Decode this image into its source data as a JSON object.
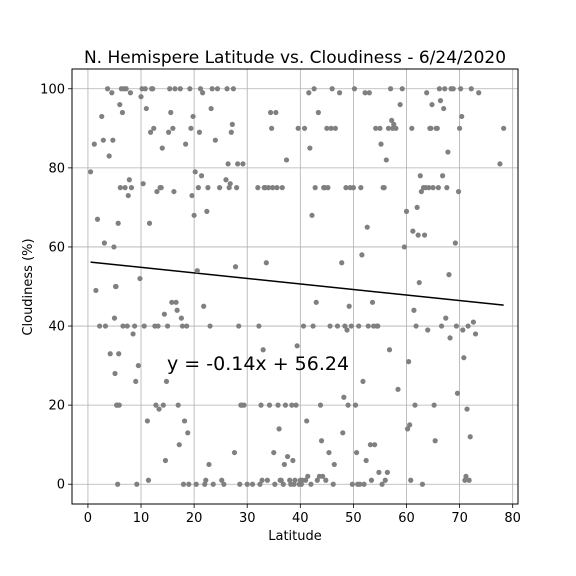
{
  "chart_data": {
    "type": "scatter",
    "title": "N. Hemispere Latitude vs. Cloudiness - 6/24/2020",
    "xlabel": "Latitude",
    "ylabel": "Cloudiness (%)",
    "xlim": [
      -3,
      81
    ],
    "ylim": [
      -5,
      105
    ],
    "xticks": [
      0,
      10,
      20,
      30,
      40,
      50,
      60,
      70,
      80
    ],
    "yticks": [
      0,
      20,
      40,
      60,
      80,
      100
    ],
    "grid": true,
    "point_color": "#808080",
    "line_color": "#000000",
    "regression": {
      "slope": -0.14,
      "intercept": 56.24,
      "x_start": 0.5,
      "x_end": 78.3
    },
    "annotation": "y = -0.14x + 56.24",
    "points": [
      [
        0.5,
        79
      ],
      [
        1.2,
        86
      ],
      [
        1.5,
        49
      ],
      [
        1.8,
        67
      ],
      [
        2.2,
        40
      ],
      [
        2.6,
        93
      ],
      [
        2.9,
        87
      ],
      [
        3.1,
        61
      ],
      [
        3.3,
        40
      ],
      [
        3.7,
        100
      ],
      [
        4.0,
        83
      ],
      [
        4.2,
        33
      ],
      [
        4.5,
        99
      ],
      [
        4.7,
        87
      ],
      [
        4.9,
        60
      ],
      [
        5.0,
        42
      ],
      [
        5.1,
        28
      ],
      [
        5.2,
        50
      ],
      [
        5.3,
        50
      ],
      [
        5.4,
        20
      ],
      [
        5.5,
        20
      ],
      [
        5.6,
        0
      ],
      [
        5.7,
        66
      ],
      [
        5.8,
        33
      ],
      [
        5.9,
        20
      ],
      [
        6.0,
        96
      ],
      [
        6.1,
        75
      ],
      [
        6.3,
        100
      ],
      [
        6.5,
        94
      ],
      [
        6.6,
        40
      ],
      [
        6.8,
        100
      ],
      [
        7.0,
        75
      ],
      [
        7.2,
        100
      ],
      [
        7.4,
        40
      ],
      [
        7.6,
        73
      ],
      [
        7.8,
        77
      ],
      [
        8.0,
        99
      ],
      [
        8.2,
        75
      ],
      [
        8.5,
        38
      ],
      [
        8.8,
        40
      ],
      [
        9.0,
        26
      ],
      [
        9.2,
        0
      ],
      [
        9.5,
        30
      ],
      [
        9.8,
        52
      ],
      [
        10.0,
        98
      ],
      [
        10.2,
        100
      ],
      [
        10.4,
        76
      ],
      [
        10.6,
        40
      ],
      [
        10.8,
        100
      ],
      [
        11.0,
        95
      ],
      [
        11.2,
        16
      ],
      [
        11.4,
        1
      ],
      [
        11.6,
        66
      ],
      [
        11.8,
        89
      ],
      [
        12.0,
        100
      ],
      [
        12.2,
        100
      ],
      [
        12.4,
        90
      ],
      [
        12.6,
        40
      ],
      [
        12.8,
        20
      ],
      [
        13.0,
        74
      ],
      [
        13.2,
        40
      ],
      [
        13.4,
        19
      ],
      [
        13.6,
        75
      ],
      [
        13.8,
        75
      ],
      [
        14.0,
        85
      ],
      [
        14.2,
        20
      ],
      [
        14.4,
        43
      ],
      [
        14.6,
        6
      ],
      [
        14.8,
        26
      ],
      [
        15.0,
        40
      ],
      [
        15.2,
        89
      ],
      [
        15.4,
        100
      ],
      [
        15.6,
        94
      ],
      [
        15.8,
        46
      ],
      [
        16.0,
        90
      ],
      [
        16.2,
        74
      ],
      [
        16.4,
        100
      ],
      [
        16.6,
        46
      ],
      [
        16.8,
        44
      ],
      [
        17.0,
        20
      ],
      [
        17.2,
        10
      ],
      [
        17.4,
        100
      ],
      [
        17.6,
        42
      ],
      [
        17.8,
        40
      ],
      [
        18.0,
        0
      ],
      [
        18.2,
        16
      ],
      [
        18.4,
        86
      ],
      [
        18.6,
        40
      ],
      [
        18.8,
        13
      ],
      [
        19.0,
        0
      ],
      [
        19.2,
        100
      ],
      [
        19.4,
        90
      ],
      [
        19.6,
        73
      ],
      [
        19.8,
        93
      ],
      [
        20.0,
        68
      ],
      [
        20.2,
        79
      ],
      [
        20.4,
        0
      ],
      [
        20.6,
        54
      ],
      [
        20.8,
        75
      ],
      [
        21.0,
        89
      ],
      [
        21.2,
        100
      ],
      [
        21.4,
        78
      ],
      [
        21.6,
        99
      ],
      [
        21.8,
        45
      ],
      [
        22.0,
        0
      ],
      [
        22.2,
        1
      ],
      [
        22.4,
        69
      ],
      [
        22.6,
        75
      ],
      [
        22.8,
        5
      ],
      [
        23.0,
        40
      ],
      [
        23.2,
        95
      ],
      [
        23.4,
        100
      ],
      [
        23.6,
        0
      ],
      [
        24.0,
        87
      ],
      [
        24.4,
        100
      ],
      [
        24.8,
        75
      ],
      [
        25.2,
        1
      ],
      [
        25.6,
        0
      ],
      [
        26.0,
        77
      ],
      [
        26.2,
        100
      ],
      [
        26.4,
        81
      ],
      [
        26.6,
        75
      ],
      [
        26.8,
        76
      ],
      [
        27.0,
        89
      ],
      [
        27.2,
        91
      ],
      [
        27.4,
        100
      ],
      [
        27.6,
        8
      ],
      [
        27.8,
        55
      ],
      [
        28.0,
        75
      ],
      [
        28.2,
        81
      ],
      [
        28.4,
        40
      ],
      [
        28.6,
        0
      ],
      [
        28.8,
        20
      ],
      [
        29.0,
        20
      ],
      [
        29.2,
        81
      ],
      [
        29.4,
        20
      ],
      [
        30.0,
        0
      ],
      [
        31.0,
        0
      ],
      [
        32.0,
        75
      ],
      [
        32.2,
        40
      ],
      [
        32.4,
        0
      ],
      [
        32.6,
        20
      ],
      [
        32.8,
        1
      ],
      [
        33.0,
        34
      ],
      [
        33.2,
        75
      ],
      [
        33.4,
        75
      ],
      [
        33.6,
        56
      ],
      [
        33.8,
        1
      ],
      [
        34.0,
        75
      ],
      [
        34.2,
        20
      ],
      [
        34.4,
        94
      ],
      [
        34.6,
        90
      ],
      [
        34.8,
        75
      ],
      [
        35.0,
        8
      ],
      [
        35.2,
        0
      ],
      [
        35.4,
        94
      ],
      [
        35.6,
        75
      ],
      [
        35.8,
        20
      ],
      [
        36.0,
        14
      ],
      [
        36.2,
        1
      ],
      [
        36.4,
        1
      ],
      [
        36.6,
        75
      ],
      [
        36.8,
        0
      ],
      [
        37.0,
        5
      ],
      [
        37.2,
        20
      ],
      [
        37.4,
        82
      ],
      [
        37.6,
        7
      ],
      [
        38.0,
        1
      ],
      [
        38.2,
        0
      ],
      [
        38.4,
        20
      ],
      [
        38.6,
        6
      ],
      [
        38.8,
        0
      ],
      [
        39.0,
        1
      ],
      [
        39.2,
        20
      ],
      [
        39.4,
        35
      ],
      [
        39.6,
        90
      ],
      [
        39.8,
        0
      ],
      [
        40.0,
        1
      ],
      [
        40.2,
        0
      ],
      [
        40.4,
        1
      ],
      [
        40.6,
        40
      ],
      [
        40.8,
        90
      ],
      [
        41.0,
        1
      ],
      [
        41.2,
        16
      ],
      [
        41.4,
        2
      ],
      [
        41.6,
        99
      ],
      [
        41.8,
        85
      ],
      [
        42.0,
        0
      ],
      [
        42.2,
        68
      ],
      [
        42.4,
        40
      ],
      [
        42.6,
        100
      ],
      [
        42.8,
        75
      ],
      [
        43.0,
        46
      ],
      [
        43.2,
        1
      ],
      [
        43.4,
        94
      ],
      [
        43.6,
        2
      ],
      [
        43.8,
        20
      ],
      [
        44.0,
        11
      ],
      [
        44.2,
        2
      ],
      [
        44.4,
        75
      ],
      [
        44.6,
        75
      ],
      [
        44.8,
        1
      ],
      [
        45.0,
        90
      ],
      [
        45.2,
        75
      ],
      [
        45.4,
        8
      ],
      [
        45.6,
        40
      ],
      [
        45.8,
        90
      ],
      [
        46.0,
        100
      ],
      [
        46.2,
        0
      ],
      [
        46.4,
        5
      ],
      [
        46.6,
        90
      ],
      [
        47.0,
        40
      ],
      [
        47.4,
        99
      ],
      [
        47.8,
        56
      ],
      [
        48.0,
        13
      ],
      [
        48.2,
        22
      ],
      [
        48.4,
        40
      ],
      [
        48.6,
        75
      ],
      [
        48.8,
        39
      ],
      [
        49.0,
        20
      ],
      [
        49.2,
        45
      ],
      [
        49.4,
        75
      ],
      [
        49.6,
        40
      ],
      [
        49.8,
        0
      ],
      [
        50.0,
        75
      ],
      [
        50.2,
        100
      ],
      [
        50.4,
        20
      ],
      [
        50.6,
        8
      ],
      [
        50.8,
        0
      ],
      [
        51.0,
        40
      ],
      [
        51.2,
        0
      ],
      [
        51.4,
        75
      ],
      [
        51.6,
        58
      ],
      [
        51.8,
        26
      ],
      [
        52.0,
        0
      ],
      [
        52.2,
        99
      ],
      [
        52.4,
        6
      ],
      [
        52.6,
        65
      ],
      [
        52.8,
        40
      ],
      [
        53.0,
        99
      ],
      [
        53.2,
        10
      ],
      [
        53.4,
        1
      ],
      [
        53.6,
        46
      ],
      [
        53.8,
        40
      ],
      [
        54.0,
        10
      ],
      [
        54.2,
        90
      ],
      [
        54.4,
        40
      ],
      [
        54.6,
        40
      ],
      [
        54.8,
        3
      ],
      [
        55.0,
        90
      ],
      [
        55.2,
        86
      ],
      [
        55.4,
        0
      ],
      [
        55.6,
        75
      ],
      [
        55.8,
        75
      ],
      [
        56.0,
        1
      ],
      [
        56.2,
        82
      ],
      [
        56.4,
        3
      ],
      [
        56.6,
        90
      ],
      [
        56.8,
        34
      ],
      [
        57.0,
        100
      ],
      [
        57.2,
        92
      ],
      [
        57.4,
        90
      ],
      [
        57.6,
        91
      ],
      [
        58.0,
        90
      ],
      [
        58.4,
        24
      ],
      [
        58.8,
        96
      ],
      [
        59.2,
        100
      ],
      [
        59.6,
        60
      ],
      [
        60.0,
        69
      ],
      [
        60.2,
        14
      ],
      [
        60.4,
        31
      ],
      [
        60.6,
        15
      ],
      [
        60.8,
        1
      ],
      [
        61.0,
        90
      ],
      [
        61.2,
        64
      ],
      [
        61.4,
        44
      ],
      [
        61.6,
        20
      ],
      [
        61.8,
        40
      ],
      [
        62.0,
        70
      ],
      [
        62.2,
        63
      ],
      [
        62.4,
        51
      ],
      [
        62.6,
        78
      ],
      [
        62.8,
        74
      ],
      [
        63.0,
        0
      ],
      [
        63.2,
        75
      ],
      [
        63.4,
        63
      ],
      [
        63.6,
        75
      ],
      [
        63.8,
        99
      ],
      [
        64.0,
        39
      ],
      [
        64.2,
        75
      ],
      [
        64.4,
        90
      ],
      [
        64.6,
        90
      ],
      [
        64.8,
        96
      ],
      [
        65.0,
        75
      ],
      [
        65.2,
        20
      ],
      [
        65.4,
        11
      ],
      [
        65.6,
        90
      ],
      [
        65.8,
        90
      ],
      [
        66.0,
        75
      ],
      [
        66.2,
        100
      ],
      [
        66.4,
        97
      ],
      [
        66.6,
        40
      ],
      [
        66.8,
        78
      ],
      [
        67.0,
        95
      ],
      [
        67.2,
        100
      ],
      [
        67.4,
        42
      ],
      [
        67.6,
        75
      ],
      [
        67.8,
        84
      ],
      [
        68.0,
        53
      ],
      [
        68.2,
        37
      ],
      [
        68.4,
        100
      ],
      [
        68.8,
        100
      ],
      [
        69.2,
        61
      ],
      [
        69.4,
        40
      ],
      [
        69.6,
        23
      ],
      [
        69.8,
        74
      ],
      [
        70.0,
        90
      ],
      [
        70.2,
        100
      ],
      [
        70.4,
        93
      ],
      [
        70.6,
        39
      ],
      [
        70.8,
        32
      ],
      [
        71.0,
        1
      ],
      [
        71.2,
        2
      ],
      [
        71.4,
        19
      ],
      [
        71.6,
        40
      ],
      [
        71.8,
        1
      ],
      [
        72.0,
        12
      ],
      [
        72.2,
        100
      ],
      [
        72.6,
        41
      ],
      [
        73.0,
        38
      ],
      [
        73.6,
        99
      ],
      [
        77.6,
        81
      ],
      [
        78.3,
        90
      ]
    ]
  }
}
